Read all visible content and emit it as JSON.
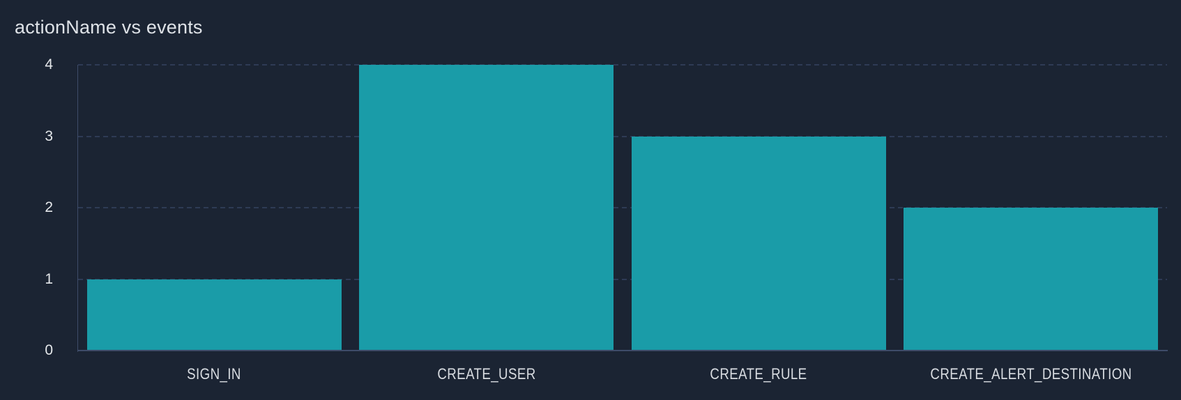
{
  "chart_data": {
    "type": "bar",
    "title": "actionName vs events",
    "categories": [
      "SIGN_IN",
      "CREATE_USER",
      "CREATE_RULE",
      "CREATE_ALERT_DESTINATION"
    ],
    "values": [
      1,
      4,
      3,
      2
    ],
    "ylim": [
      0,
      4
    ],
    "yticks": [
      0,
      1,
      2,
      3,
      4
    ],
    "grid": "dashed-horizontal",
    "legend": "none"
  },
  "colors": {
    "background": "#1b2433",
    "bar": "#1a9ca8",
    "gridline": "#2e3b55",
    "axis": "#3e4c69",
    "title_text": "#dee2e7",
    "tick_text": "#e4e7ea",
    "label_text": "#d8dce1"
  }
}
